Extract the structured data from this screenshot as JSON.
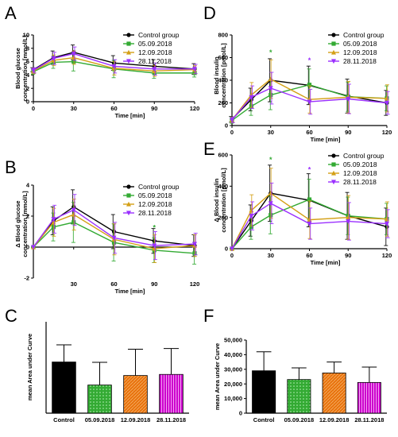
{
  "colors": {
    "control": "#000000",
    "d0509": "#33aa33",
    "d1209": "#d4a017",
    "d2811": "#9b30ff",
    "star_green": "#33aa33",
    "star_purple": "#9b30ff"
  },
  "chart_data": [
    {
      "panel": "A",
      "type": "line",
      "xlabel": "Time [min]",
      "ylabel": "Blood glucose concentration [mmol/L]",
      "x": [
        0,
        15,
        30,
        60,
        90,
        120
      ],
      "xticks": [
        0,
        30,
        60,
        90,
        120
      ],
      "xtick_labels": [
        "0",
        "30",
        "60",
        "90",
        "120"
      ],
      "ylim": [
        0,
        10
      ],
      "yticks": [
        0,
        2,
        4,
        6,
        8,
        10
      ],
      "legend_position": "top-right",
      "series": [
        {
          "name": "Control group",
          "key": "control",
          "marker": "circle",
          "values": [
            4.8,
            6.6,
            7.4,
            5.8,
            5.3,
            4.9
          ],
          "err": [
            0.3,
            1.0,
            1.1,
            1.1,
            1.0,
            0.8
          ]
        },
        {
          "name": "05.09.2018",
          "key": "d0509",
          "marker": "square",
          "values": [
            4.5,
            5.9,
            6.0,
            4.9,
            4.3,
            4.3
          ],
          "err": [
            0.4,
            0.9,
            1.4,
            1.3,
            0.8,
            0.6
          ]
        },
        {
          "name": "12.09.2018",
          "key": "d1209",
          "marker": "triangle-up",
          "values": [
            4.6,
            6.2,
            6.6,
            5.0,
            4.6,
            4.8
          ],
          "err": [
            0.4,
            0.8,
            1.0,
            1.0,
            0.8,
            0.6
          ]
        },
        {
          "name": "28.11.2018",
          "key": "d2811",
          "marker": "triangle-down",
          "values": [
            4.7,
            6.5,
            7.2,
            5.3,
            4.9,
            4.9
          ],
          "err": [
            0.4,
            0.9,
            1.0,
            1.0,
            0.9,
            0.7
          ]
        }
      ]
    },
    {
      "panel": "B",
      "type": "line",
      "xlabel": "Time [min]",
      "ylabel": "Δ Blood glucose concentration [mmol/L]",
      "x": [
        0,
        15,
        30,
        60,
        90,
        120
      ],
      "xticks": [
        30,
        60,
        90,
        120
      ],
      "xtick_labels": [
        "30",
        "60",
        "90",
        "120"
      ],
      "ylim": [
        -2,
        4
      ],
      "yticks": [
        -2,
        0,
        2,
        4
      ],
      "legend_position": "top-right",
      "annotations": [
        {
          "text": "*",
          "x": 90,
          "y": 1.1,
          "color_key": "star_green"
        }
      ],
      "series": [
        {
          "name": "Control group",
          "key": "control",
          "marker": "circle",
          "values": [
            0,
            1.7,
            2.6,
            1.0,
            0.4,
            0.1
          ],
          "err": [
            0,
            0.9,
            1.1,
            1.1,
            0.8,
            0.7
          ]
        },
        {
          "name": "05.09.2018",
          "key": "d0509",
          "marker": "square",
          "values": [
            0,
            1.3,
            1.6,
            0.3,
            -0.2,
            -0.4
          ],
          "err": [
            0,
            0.9,
            1.3,
            1.2,
            0.8,
            0.7
          ]
        },
        {
          "name": "12.09.2018",
          "key": "d1209",
          "marker": "triangle-up",
          "values": [
            0,
            1.6,
            2.1,
            0.5,
            -0.1,
            0.1
          ],
          "err": [
            0,
            0.9,
            1.0,
            1.0,
            0.9,
            0.7
          ]
        },
        {
          "name": "28.11.2018",
          "key": "d2811",
          "marker": "triangle-down",
          "values": [
            0,
            1.8,
            2.4,
            0.6,
            0.1,
            0.2
          ],
          "err": [
            0,
            0.9,
            1.0,
            1.0,
            0.9,
            0.7
          ]
        }
      ]
    },
    {
      "panel": "C",
      "type": "bar",
      "xlabel": "",
      "ylabel": "mean Area under Curve",
      "categories": [
        "Control",
        "05.09.2018",
        "12.09.2018",
        "28.11.2018"
      ],
      "values": [
        140,
        77,
        103,
        106
      ],
      "err": [
        47,
        62,
        72,
        71
      ],
      "ylim": [
        0,
        250
      ],
      "yticks": [],
      "legend_position": "none"
    },
    {
      "panel": "D",
      "type": "line",
      "xlabel": "Time [min]",
      "ylabel": "Blood insulin concentration [pmol/L]",
      "x": [
        0,
        15,
        30,
        60,
        90,
        120
      ],
      "xticks": [
        0,
        30,
        60,
        90,
        120
      ],
      "xtick_labels": [
        "0",
        "30",
        "60",
        "90",
        "120"
      ],
      "ylim": [
        0,
        800
      ],
      "yticks": [
        0,
        200,
        400,
        600,
        800
      ],
      "legend_position": "top-right",
      "annotations": [
        {
          "text": "*",
          "x": 30,
          "y": 625,
          "color_key": "star_green"
        },
        {
          "text": "*",
          "x": 60,
          "y": 555,
          "color_key": "star_purple"
        }
      ],
      "series": [
        {
          "name": "Control group",
          "key": "control",
          "marker": "circle",
          "values": [
            55,
            230,
            400,
            355,
            260,
            200
          ],
          "err": [
            25,
            100,
            190,
            170,
            150,
            110
          ]
        },
        {
          "name": "05.09.2018",
          "key": "d0509",
          "marker": "square",
          "values": [
            45,
            170,
            270,
            360,
            255,
            240
          ],
          "err": [
            25,
            80,
            130,
            140,
            130,
            110
          ]
        },
        {
          "name": "12.09.2018",
          "key": "d1209",
          "marker": "triangle-up",
          "values": [
            50,
            270,
            410,
            230,
            250,
            240
          ],
          "err": [
            25,
            110,
            170,
            120,
            140,
            120
          ]
        },
        {
          "name": "28.11.2018",
          "key": "d2811",
          "marker": "triangle-down",
          "values": [
            50,
            250,
            330,
            210,
            235,
            200
          ],
          "err": [
            25,
            100,
            140,
            110,
            130,
            100
          ]
        }
      ]
    },
    {
      "panel": "E",
      "type": "line",
      "xlabel": "Time [min]",
      "ylabel": "Δ Blood insulin concentration [pmol/L]",
      "x": [
        0,
        15,
        30,
        60,
        90,
        120
      ],
      "xticks": [
        0,
        30,
        60,
        90,
        120
      ],
      "xtick_labels": [
        "0",
        "30",
        "60",
        "90",
        "120"
      ],
      "ylim": [
        0,
        600
      ],
      "yticks": [
        0,
        200,
        400,
        600
      ],
      "legend_position": "top-right",
      "annotations": [
        {
          "text": "*",
          "x": 30,
          "y": 555,
          "color_key": "star_green"
        },
        {
          "text": "*",
          "x": 60,
          "y": 490,
          "color_key": "star_purple"
        }
      ],
      "series": [
        {
          "name": "Control group",
          "key": "control",
          "marker": "circle",
          "values": [
            0,
            180,
            355,
            310,
            210,
            140
          ],
          "err": [
            0,
            100,
            180,
            170,
            150,
            120
          ]
        },
        {
          "name": "05.09.2018",
          "key": "d0509",
          "marker": "square",
          "values": [
            0,
            140,
            215,
            315,
            210,
            190
          ],
          "err": [
            0,
            80,
            120,
            130,
            120,
            100
          ]
        },
        {
          "name": "12.09.2018",
          "key": "d1209",
          "marker": "triangle-up",
          "values": [
            0,
            245,
            355,
            185,
            200,
            190
          ],
          "err": [
            0,
            100,
            160,
            120,
            140,
            110
          ]
        },
        {
          "name": "28.11.2018",
          "key": "d2811",
          "marker": "triangle-down",
          "values": [
            0,
            210,
            290,
            160,
            175,
            160
          ],
          "err": [
            0,
            90,
            130,
            100,
            120,
            90
          ]
        }
      ]
    },
    {
      "panel": "F",
      "type": "bar",
      "xlabel": "",
      "ylabel": "mean Area under Curve",
      "categories": [
        "Control",
        "05.09.2018",
        "12.09.2018",
        "28.11.2018"
      ],
      "values": [
        29000,
        23000,
        27500,
        21000
      ],
      "err": [
        13000,
        8000,
        7500,
        10500
      ],
      "ylim": [
        0,
        50000
      ],
      "yticks": [
        0,
        10000,
        20000,
        30000,
        40000,
        50000
      ],
      "ytick_labels": [
        "0",
        "10,000",
        "20,000",
        "30,000",
        "40,000",
        "50,000"
      ],
      "legend_position": "none"
    }
  ]
}
